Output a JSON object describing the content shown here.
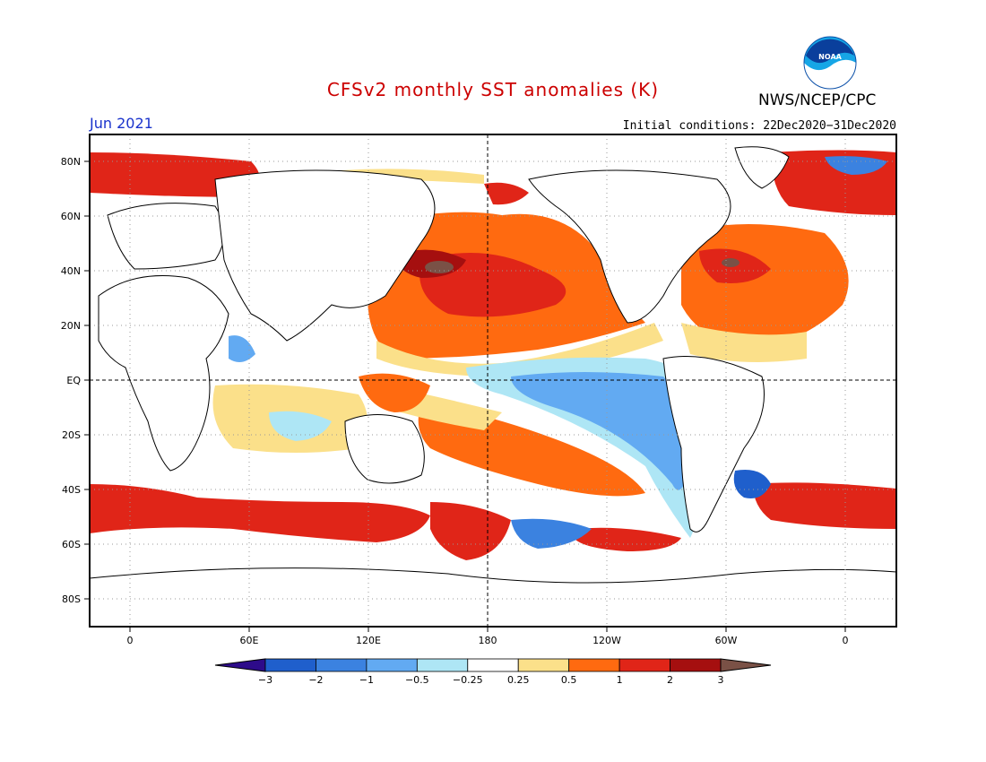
{
  "header": {
    "title": "CFSv2 monthly SST anomalies (K)",
    "agency": "NWS/NCEP/CPC",
    "logo_text": "NOAA",
    "month": "Jun 2021",
    "initial_conditions": "Initial conditions: 22Dec2020−31Dec2020"
  },
  "map": {
    "lat_labels": [
      "80N",
      "60N",
      "40N",
      "20N",
      "EQ",
      "20S",
      "40S",
      "60S",
      "80S"
    ],
    "lon_labels": [
      "0",
      "60E",
      "120E",
      "180",
      "120W",
      "60W",
      "0"
    ]
  },
  "colorbar": {
    "levels": [
      "−3",
      "−2",
      "−1",
      "−0.5",
      "−0.25",
      "0.25",
      "0.5",
      "1",
      "2",
      "3"
    ],
    "colors": [
      "#2d0b8a",
      "#1f5fcc",
      "#3b82e0",
      "#62aaf2",
      "#aee6f5",
      "#ffffff",
      "#fbe08a",
      "#ff6a10",
      "#e02518",
      "#a50f0f",
      "#7a5146"
    ]
  }
}
